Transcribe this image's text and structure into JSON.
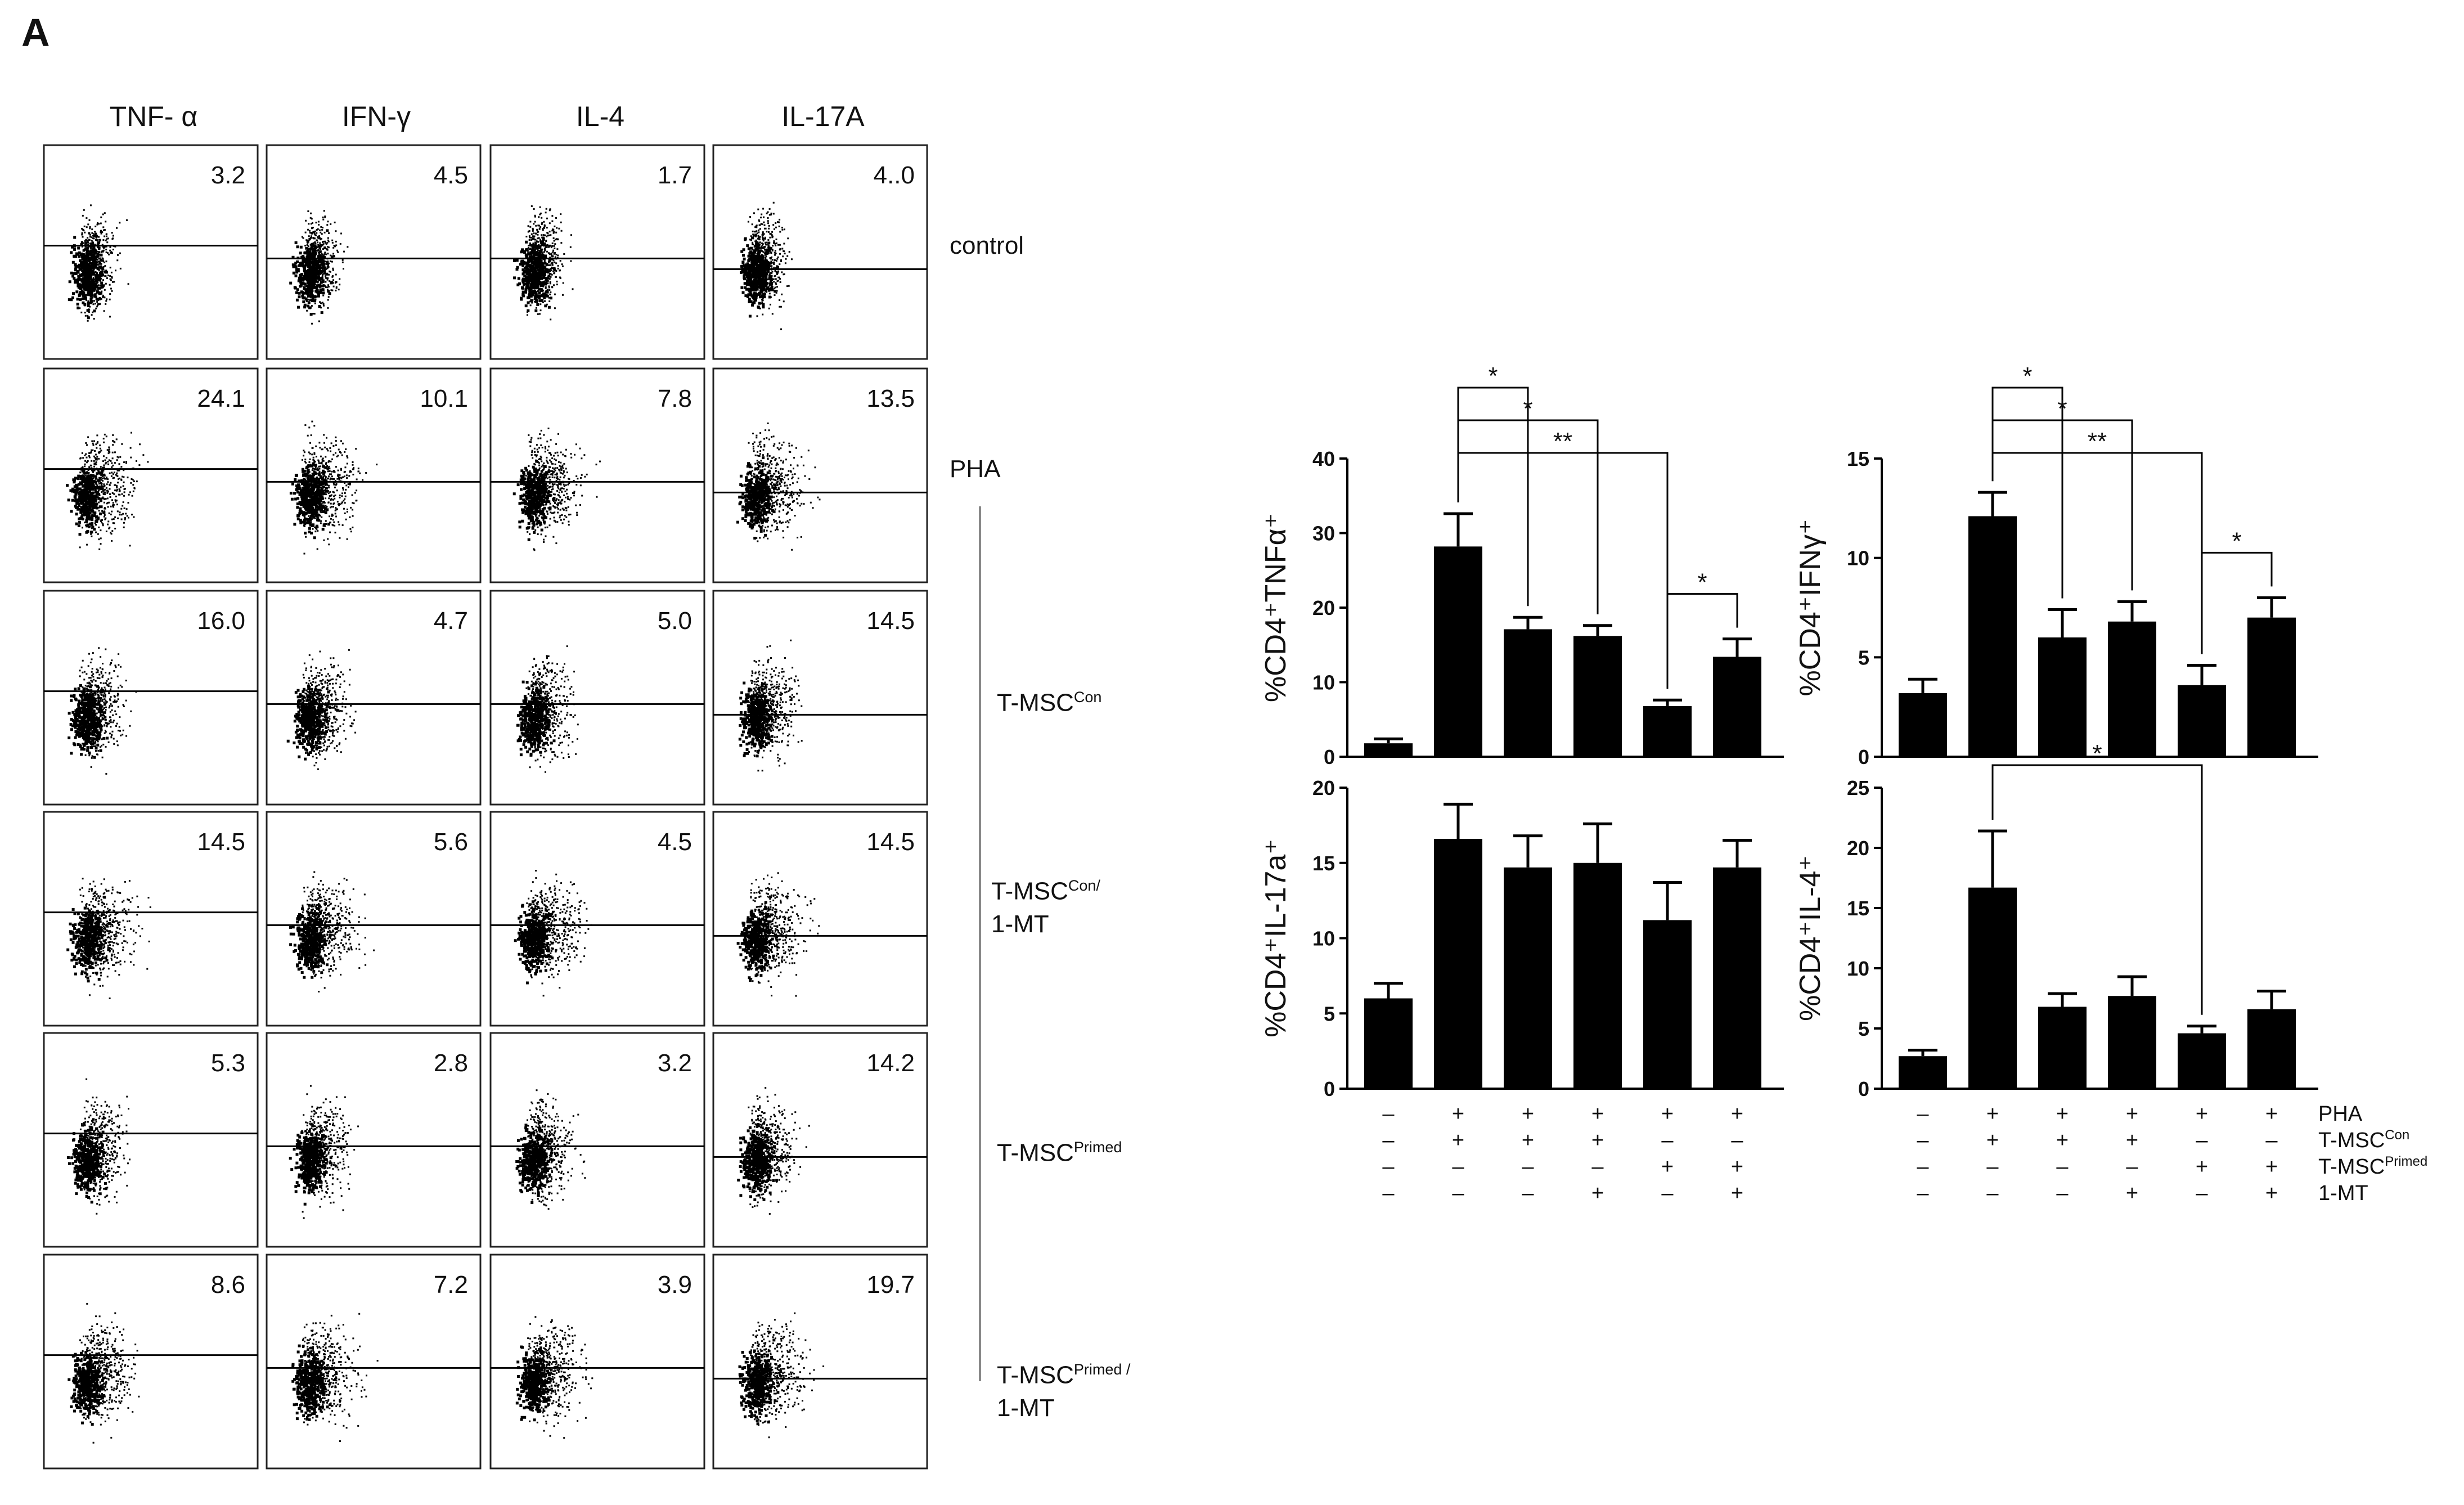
{
  "panel_letter": "A",
  "flow": {
    "columns": [
      "TNF- α",
      "IFN-γ",
      "IL-4",
      "IL-17A"
    ],
    "rows": [
      {
        "name": "control",
        "values": [
          "3.2",
          "4.5",
          "1.7",
          "4..0"
        ]
      },
      {
        "name": "PHA",
        "values": [
          "24.1",
          "10.1",
          "7.8",
          "13.5"
        ]
      },
      {
        "name": "T-MSC-Con",
        "values": [
          "16.0",
          "4.7",
          "5.0",
          "14.5"
        ]
      },
      {
        "name": "T-MSC-Con/1-MT",
        "values": [
          "14.5",
          "5.6",
          "4.5",
          "14.5"
        ]
      },
      {
        "name": "T-MSC-Primed",
        "values": [
          "5.3",
          "2.8",
          "3.2",
          "14.2"
        ]
      },
      {
        "name": "T-MSC-Primed/1-MT",
        "values": [
          "8.6",
          "7.2",
          "3.9",
          "19.7"
        ]
      }
    ],
    "labels": {
      "control": "control",
      "pha": "PHA",
      "tmsc": "T-MSC",
      "con": "Con",
      "con_slash": "Con/",
      "primed": "Primed",
      "primed_slash": "Primed /",
      "mt": "1-MT"
    }
  },
  "chart_data": [
    {
      "type": "bar",
      "ylabel": "%CD4⁺TNFα⁺",
      "ylim": [
        0,
        40
      ],
      "yticks": [
        "0",
        "10",
        "20",
        "30",
        "40"
      ],
      "values": [
        1.8,
        28.2,
        17.1,
        16.2,
        6.8,
        13.4
      ],
      "errors": [
        0.6,
        4.4,
        1.6,
        1.4,
        0.8,
        2.4
      ],
      "significance": [
        {
          "from": 1,
          "to": 2,
          "label": "*"
        },
        {
          "from": 1,
          "to": 3,
          "label": "*"
        },
        {
          "from": 1,
          "to": 4,
          "label": "**"
        },
        {
          "from": 4,
          "to": 5,
          "label": "*"
        }
      ]
    },
    {
      "type": "bar",
      "ylabel": "%CD4⁺IFNγ⁺",
      "ylim": [
        0,
        15
      ],
      "yticks": [
        "0",
        "5",
        "10",
        "15"
      ],
      "values": [
        3.2,
        12.1,
        6.0,
        6.8,
        3.6,
        7.0
      ],
      "errors": [
        0.7,
        1.2,
        1.4,
        1.0,
        1.0,
        1.0
      ],
      "significance": [
        {
          "from": 1,
          "to": 2,
          "label": "*"
        },
        {
          "from": 1,
          "to": 3,
          "label": "*"
        },
        {
          "from": 1,
          "to": 4,
          "label": "**"
        },
        {
          "from": 4,
          "to": 5,
          "label": "*"
        }
      ]
    },
    {
      "type": "bar",
      "ylabel": "%CD4⁺IL-17a⁺",
      "ylim": [
        0,
        20
      ],
      "yticks": [
        "0",
        "5",
        "10",
        "15",
        "20"
      ],
      "values": [
        6.0,
        16.6,
        14.7,
        15.0,
        11.2,
        14.7
      ],
      "errors": [
        1.0,
        2.3,
        2.1,
        2.6,
        2.5,
        1.8
      ],
      "significance": []
    },
    {
      "type": "bar",
      "ylabel": "%CD4⁺IL-4⁺",
      "ylim": [
        0,
        25
      ],
      "yticks": [
        "0",
        "5",
        "10",
        "15",
        "20",
        "25"
      ],
      "values": [
        2.7,
        16.7,
        6.8,
        7.7,
        4.6,
        6.6
      ],
      "errors": [
        0.5,
        4.7,
        1.1,
        1.6,
        0.6,
        1.5
      ],
      "significance": [
        {
          "from": 1,
          "to": 4,
          "label": "*"
        }
      ]
    }
  ],
  "treatment_table": {
    "rows": [
      {
        "label": "PHA",
        "sup": "",
        "cells": [
          "–",
          "+",
          "+",
          "+",
          "+",
          "+"
        ]
      },
      {
        "label": "T-MSC",
        "sup": "Con",
        "cells": [
          "–",
          "+",
          "+",
          "+",
          "–",
          "–"
        ]
      },
      {
        "label": "T-MSC",
        "sup": "Primed",
        "cells": [
          "–",
          "–",
          "–",
          "–",
          "+",
          "+"
        ]
      },
      {
        "label": "1-MT",
        "sup": "",
        "cells": [
          "–",
          "–",
          "–",
          "+",
          "–",
          "+"
        ]
      }
    ]
  }
}
